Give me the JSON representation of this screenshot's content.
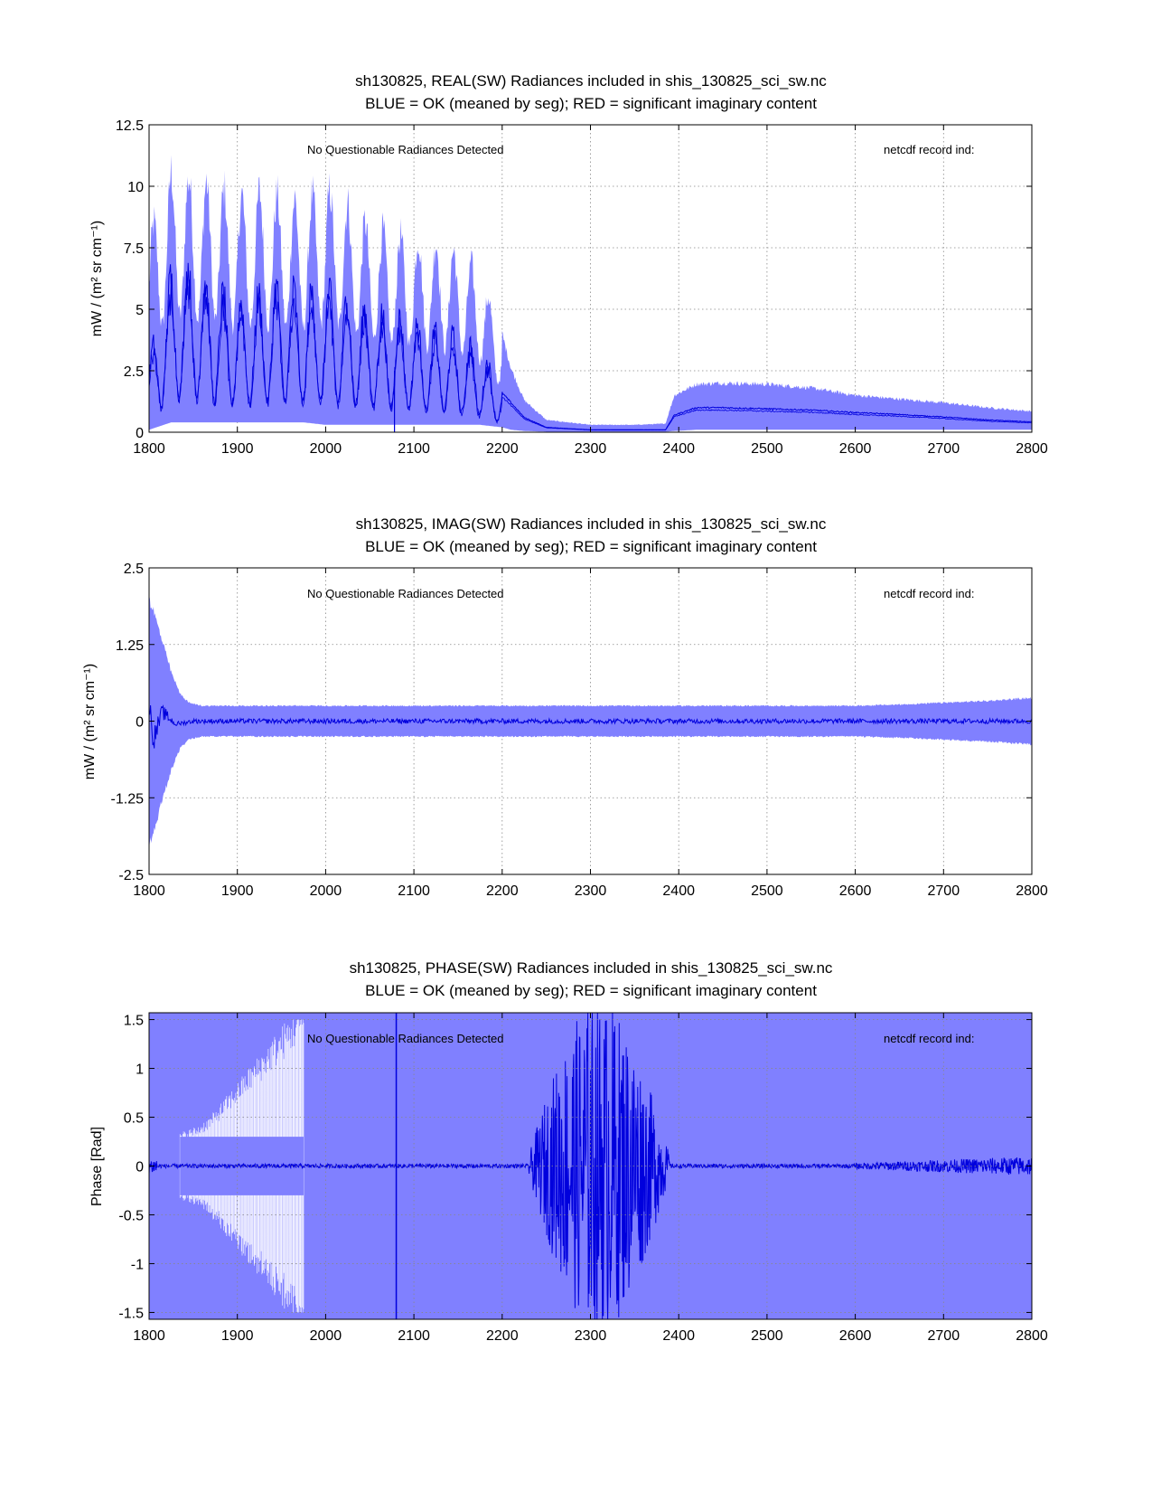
{
  "colors": {
    "band": "#8080ff",
    "mean": "#0000dd",
    "axis": "#000000",
    "grid": "#888888",
    "background": "#ffffff"
  },
  "chart_data": [
    {
      "type": "line",
      "id": "real",
      "title_line1": "sh130825, REAL(SW) Radiances included in shis_130825_sci_sw.nc",
      "title_line2": "BLUE = OK (meaned by seg); RED = significant imaginary content",
      "annotation_left": "No Questionable Radiances Detected",
      "annotation_right": "netcdf record ind:",
      "xlabel": "",
      "ylabel": "mW / (m² sr cm⁻¹)",
      "xlim": [
        1800,
        2800
      ],
      "ylim": [
        0,
        12.5
      ],
      "xticks": [
        1800,
        1900,
        2000,
        2100,
        2200,
        2300,
        2400,
        2500,
        2600,
        2700,
        2800
      ],
      "xtick_labels": [
        "1800",
        "1900",
        "2000",
        "2100",
        "2200",
        "2300",
        "2400",
        "2500",
        "2600",
        "2700",
        "2800"
      ],
      "yticks": [
        0,
        2.5,
        5,
        7.5,
        10,
        12.5
      ],
      "ytick_labels": [
        "0",
        "2.5",
        "5",
        "7.5",
        "10",
        "12.5"
      ],
      "grid": true,
      "series": [
        {
          "name": "range band (blue)",
          "x": [
            1800,
            1825,
            1850,
            1875,
            1900,
            1925,
            1950,
            1975,
            2000,
            2025,
            2050,
            2075,
            2100,
            2125,
            2150,
            2175,
            2200,
            2210,
            2225,
            2250,
            2300,
            2350,
            2385,
            2395,
            2420,
            2450,
            2500,
            2550,
            2600,
            2650,
            2700,
            2750,
            2800
          ],
          "upper": [
            8.0,
            10.6,
            10.3,
            10.1,
            9.6,
            9.8,
            9.6,
            9.4,
            10.0,
            9.3,
            8.4,
            8.1,
            7.9,
            7.7,
            7.3,
            6.5,
            4.0,
            2.6,
            1.3,
            0.5,
            0.3,
            0.3,
            0.35,
            1.5,
            1.95,
            2.0,
            1.95,
            1.8,
            1.5,
            1.35,
            1.2,
            1.0,
            0.85
          ],
          "lower": [
            0.1,
            0.4,
            0.4,
            0.4,
            0.4,
            0.4,
            0.4,
            0.4,
            0.3,
            0.3,
            0.3,
            0.3,
            0.3,
            0.3,
            0.3,
            0.3,
            0.2,
            0.1,
            0.05,
            0.02,
            0.02,
            0.02,
            0.02,
            0.05,
            0.1,
            0.1,
            0.1,
            0.1,
            0.1,
            0.1,
            0.1,
            0.1,
            0.1
          ]
        },
        {
          "name": "segment means (dark blue)",
          "x": [
            1800,
            1825,
            1850,
            1875,
            1900,
            1925,
            1950,
            1975,
            2000,
            2025,
            2050,
            2075,
            2100,
            2125,
            2150,
            2175,
            2200,
            2215,
            2225,
            2250,
            2300,
            2350,
            2385,
            2395,
            2420,
            2450,
            2500,
            2550,
            2600,
            2650,
            2700,
            2750,
            2800
          ],
          "y": [
            2.5,
            5.5,
            5.8,
            5.0,
            4.5,
            4.8,
            5.2,
            4.8,
            5.0,
            4.7,
            4.2,
            4.1,
            3.8,
            3.5,
            3.3,
            2.9,
            1.6,
            1.0,
            0.6,
            0.2,
            0.1,
            0.1,
            0.1,
            0.7,
            1.0,
            1.0,
            0.95,
            0.9,
            0.8,
            0.72,
            0.62,
            0.5,
            0.42
          ]
        }
      ]
    },
    {
      "type": "line",
      "id": "imag",
      "title_line1": "sh130825, IMAG(SW) Radiances included in shis_130825_sci_sw.nc",
      "title_line2": "BLUE = OK (meaned by seg); RED = significant imaginary content",
      "annotation_left": "No Questionable Radiances Detected",
      "annotation_right": "netcdf record ind:",
      "xlabel": "",
      "ylabel": "mW / (m² sr cm⁻¹)",
      "xlim": [
        1800,
        2800
      ],
      "ylim": [
        -2.5,
        2.5
      ],
      "xticks": [
        1800,
        1900,
        2000,
        2100,
        2200,
        2300,
        2400,
        2500,
        2600,
        2700,
        2800
      ],
      "xtick_labels": [
        "1800",
        "1900",
        "2000",
        "2100",
        "2200",
        "2300",
        "2400",
        "2500",
        "2600",
        "2700",
        "2800"
      ],
      "yticks": [
        -2.5,
        -1.25,
        0,
        1.25,
        2.5
      ],
      "ytick_labels": [
        "-2.5",
        "-1.25",
        "0",
        "1.25",
        "2.5"
      ],
      "grid": true,
      "series": [
        {
          "name": "range band (blue)",
          "x": [
            1800,
            1805,
            1815,
            1825,
            1835,
            1845,
            1860,
            1900,
            2000,
            2100,
            2200,
            2300,
            2400,
            2500,
            2600,
            2650,
            2700,
            2750,
            2800
          ],
          "upper": [
            2.0,
            1.8,
            1.3,
            0.8,
            0.45,
            0.3,
            0.25,
            0.25,
            0.25,
            0.25,
            0.25,
            0.25,
            0.25,
            0.25,
            0.25,
            0.27,
            0.3,
            0.33,
            0.38
          ],
          "lower": [
            -2.0,
            -1.8,
            -1.3,
            -0.8,
            -0.45,
            -0.3,
            -0.25,
            -0.25,
            -0.25,
            -0.25,
            -0.25,
            -0.25,
            -0.25,
            -0.25,
            -0.25,
            -0.27,
            -0.3,
            -0.33,
            -0.38
          ]
        },
        {
          "name": "segment means (dark blue)",
          "x": [
            1800,
            1805,
            1815,
            1830,
            1850,
            1900,
            2000,
            2100,
            2200,
            2300,
            2400,
            2500,
            2600,
            2700,
            2800
          ],
          "y": [
            0.3,
            -0.3,
            0.15,
            -0.05,
            0.0,
            0.0,
            0.0,
            0.0,
            0.0,
            0.0,
            0.0,
            0.0,
            0.0,
            0.0,
            0.0
          ]
        }
      ]
    },
    {
      "type": "line",
      "id": "phase",
      "title_line1": "sh130825, PHASE(SW) Radiances included in shis_130825_sci_sw.nc",
      "title_line2": "BLUE = OK (meaned by seg); RED = significant imaginary content",
      "annotation_left": "No Questionable Radiances Detected",
      "annotation_right": "netcdf record ind:",
      "xlabel": "",
      "ylabel": "Phase [Rad]",
      "xlim": [
        1800,
        2800
      ],
      "ylim": [
        -1.57,
        1.57
      ],
      "xticks": [
        1800,
        1900,
        2000,
        2100,
        2200,
        2300,
        2400,
        2500,
        2600,
        2700,
        2800
      ],
      "xtick_labels": [
        "1800",
        "1900",
        "2000",
        "2100",
        "2200",
        "2300",
        "2400",
        "2500",
        "2600",
        "2700",
        "2800"
      ],
      "yticks": [
        -1.5,
        -1,
        -0.5,
        0,
        0.5,
        1,
        1.5
      ],
      "ytick_labels": [
        "-1.5",
        "-1",
        "-0.5",
        "0",
        "0.5",
        "1",
        "1.5"
      ],
      "grid": true,
      "series": [
        {
          "name": "range band (blue)",
          "x": [
            1800,
            2800
          ],
          "upper": [
            1.57,
            1.57
          ],
          "lower": [
            -1.57,
            -1.57
          ]
        },
        {
          "name": "white gap region",
          "x": [
            1835,
            1845,
            1855,
            1870,
            1885,
            1900,
            1915,
            1930,
            1945,
            1960,
            1975
          ],
          "upper": [
            0.3,
            0.33,
            0.36,
            0.45,
            0.6,
            0.75,
            0.9,
            1.05,
            1.2,
            1.35,
            1.5
          ],
          "lower": [
            -0.3,
            -0.33,
            -0.36,
            -0.45,
            -0.6,
            -0.75,
            -0.9,
            -1.05,
            -1.2,
            -1.35,
            -1.5
          ]
        },
        {
          "name": "segment means (dark blue)",
          "x": [
            1800,
            1850,
            1900,
            2000,
            2080,
            2100,
            2200,
            2240,
            2260,
            2300,
            2340,
            2380,
            2400,
            2500,
            2600,
            2700,
            2800
          ],
          "y": [
            0.0,
            0.0,
            0.0,
            0.0,
            0.0,
            0.0,
            0.0,
            0.0,
            0.0,
            0.0,
            0.0,
            0.0,
            0.0,
            0.0,
            0.0,
            0.0,
            0.0
          ]
        }
      ]
    }
  ]
}
